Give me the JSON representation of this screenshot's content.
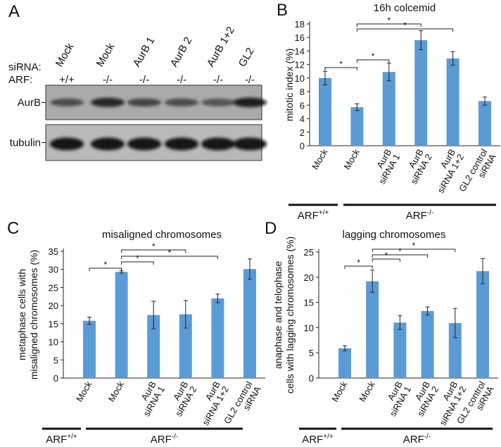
{
  "blot": {
    "letter": "A",
    "row_labels": [
      "siRNA:",
      "ARF:"
    ],
    "lanes": [
      "Mock",
      "Mock",
      "AurB 1",
      "AurB 2",
      "AurB 1+2",
      "GL2"
    ],
    "arf": [
      "+/+",
      "-/-",
      "-/-",
      "-/-",
      "-/-",
      "-/-"
    ],
    "blots": [
      "AurB",
      "tubulin"
    ]
  },
  "chart_data": [
    {
      "type": "bar",
      "letter": "B",
      "title": "16h colcemid",
      "y_label": [
        "mitotic index (%)"
      ],
      "categories": [
        [
          "Mock"
        ],
        [
          "Mock"
        ],
        [
          "AurB",
          "siRNA 1"
        ],
        [
          "AurB",
          "siRNA 2"
        ],
        [
          "AurB",
          "siRNA 1+2"
        ],
        [
          "GL2 control",
          "siRNA"
        ]
      ],
      "values": [
        10.0,
        5.7,
        10.9,
        15.6,
        12.9,
        6.6
      ],
      "errors": [
        1.0,
        0.5,
        1.3,
        1.4,
        1.0,
        0.6
      ],
      "color": "#5b9bd5",
      "ylim": [
        0,
        18
      ],
      "yticks": [
        0,
        2,
        4,
        6,
        8,
        10,
        12,
        14,
        16,
        18
      ],
      "significance": [
        "*",
        "*",
        "*",
        "*"
      ],
      "groups": [
        {
          "name": "ARF",
          "sup": "+/+"
        },
        {
          "name": "ARF",
          "sup": "-/-"
        }
      ]
    },
    {
      "type": "bar",
      "letter": "C",
      "title": "misaligned chromosomes",
      "y_label": [
        "metaphase cells with",
        "misaligned chromosomes (%)"
      ],
      "categories": [
        [
          "Mock"
        ],
        [
          "Mock"
        ],
        [
          "AurB",
          "siRNA 1"
        ],
        [
          "AurB",
          "siRNA 2"
        ],
        [
          "AurB",
          "siRNA 1+2"
        ],
        [
          "GL2 control",
          "siRNA"
        ]
      ],
      "values": [
        15.8,
        29.3,
        17.4,
        17.6,
        22.0,
        30.1
      ],
      "errors": [
        1.0,
        0.3,
        3.8,
        3.8,
        1.2,
        2.8
      ],
      "color": "#5b9bd5",
      "ylim": [
        0,
        35
      ],
      "yticks": [
        0,
        5,
        10,
        15,
        20,
        25,
        30,
        35
      ],
      "significance": [
        "*",
        "*",
        "*",
        "*"
      ],
      "groups": [
        {
          "name": "ARF",
          "sup": "+/+"
        },
        {
          "name": "ARF",
          "sup": "-/-"
        }
      ]
    },
    {
      "type": "bar",
      "letter": "D",
      "title": "lagging chromosomes",
      "y_label": [
        "anaphase and telophase",
        "cells with lagging chromosomes (%)"
      ],
      "categories": [
        [
          "Mock"
        ],
        [
          "Mock"
        ],
        [
          "AurB",
          "siRNA 1"
        ],
        [
          "AurB",
          "siRNA 2"
        ],
        [
          "AurB",
          "siRNA 1+2"
        ],
        [
          "GL2 control",
          "siRNA"
        ]
      ],
      "values": [
        5.9,
        19.2,
        11.0,
        13.3,
        10.9,
        21.2
      ],
      "errors": [
        0.5,
        2.2,
        1.4,
        0.8,
        2.9,
        2.5
      ],
      "color": "#5b9bd5",
      "ylim": [
        0,
        25
      ],
      "yticks": [
        0,
        5,
        10,
        15,
        20,
        25
      ],
      "significance": [
        "*",
        "*",
        "*",
        "*"
      ],
      "groups": [
        {
          "name": "ARF",
          "sup": "+/+"
        },
        {
          "name": "ARF",
          "sup": "-/-"
        }
      ]
    }
  ]
}
